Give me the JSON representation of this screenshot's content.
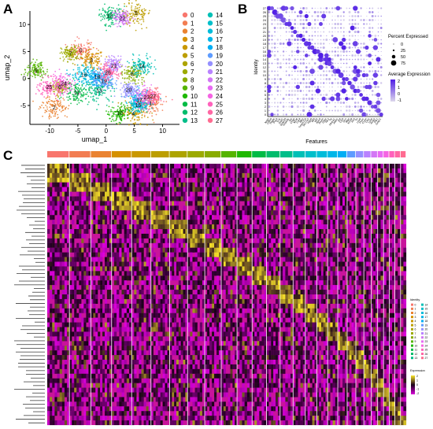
{
  "panels": {
    "a": {
      "letter": "A"
    },
    "b": {
      "letter": "B"
    },
    "c": {
      "letter": "C"
    }
  },
  "cluster_ids": [
    "0",
    "1",
    "2",
    "3",
    "4",
    "5",
    "6",
    "7",
    "8",
    "9",
    "10",
    "11",
    "12",
    "13",
    "14",
    "15",
    "16",
    "17",
    "18",
    "19",
    "20",
    "21",
    "22",
    "23",
    "24",
    "25",
    "26",
    "27"
  ],
  "colors": [
    "#f8766d",
    "#f27d52",
    "#ea8331",
    "#e18a00",
    "#d59100",
    "#c99800",
    "#bc9e00",
    "#ada400",
    "#9caa00",
    "#89ac00",
    "#72b000",
    "#55b400",
    "#1fb800",
    "#00bb45",
    "#00bc6c",
    "#00be89",
    "#00bfa1",
    "#00c0b6",
    "#00bfca",
    "#00bcda",
    "#00b6e8",
    "#00aef4",
    "#00a5ff",
    "#5e9cff",
    "#9590ff",
    "#b983ff",
    "#d377f5",
    "#e76bf3",
    "#f564e3",
    "#fd61d1",
    "#ff62bc",
    "#ff67a4",
    "#ff6c91"
  ],
  "chart_data": [
    {
      "type": "scatter",
      "panel": "A",
      "xlabel": "umap_1",
      "ylabel": "umap_2",
      "xticks": [
        -10,
        -5,
        0,
        5,
        10
      ],
      "yticks": [
        -5,
        0,
        5,
        10
      ],
      "xlim": [
        -13.5,
        13
      ],
      "ylim": [
        -8.5,
        12.5
      ],
      "legend_placement": "right",
      "cluster_centers": [
        {
          "id": "0",
          "x": -4.5,
          "y": 5.2
        },
        {
          "id": "1",
          "x": 7.9,
          "y": -4.6
        },
        {
          "id": "2",
          "x": -9.2,
          "y": -5.4
        },
        {
          "id": "3",
          "x": -2.6,
          "y": 3.4
        },
        {
          "id": "4",
          "x": 4.8,
          "y": -6.5
        },
        {
          "id": "5",
          "x": 5.3,
          "y": 12.1
        },
        {
          "id": "6",
          "x": -8.2,
          "y": -1.6
        },
        {
          "id": "7",
          "x": -6.3,
          "y": 4.6
        },
        {
          "id": "8",
          "x": 4.6,
          "y": 0.8
        },
        {
          "id": "9",
          "x": -12.4,
          "y": 1.5
        },
        {
          "id": "10",
          "x": 2.4,
          "y": -6.4
        },
        {
          "id": "11",
          "x": -5.2,
          "y": -2.6
        },
        {
          "id": "12",
          "x": 0.6,
          "y": 11.6
        },
        {
          "id": "13",
          "x": -1.2,
          "y": -2.2
        },
        {
          "id": "14",
          "x": 6.3,
          "y": 2.3
        },
        {
          "id": "15",
          "x": 5.7,
          "y": -4.9
        },
        {
          "id": "16",
          "x": -3.9,
          "y": 0.7
        },
        {
          "id": "17",
          "x": 5.9,
          "y": -4.0
        },
        {
          "id": "18",
          "x": -1.6,
          "y": 0.3
        },
        {
          "id": "19",
          "x": -0.4,
          "y": -0.5
        },
        {
          "id": "20",
          "x": 4.0,
          "y": -2.1
        },
        {
          "id": "21",
          "x": 1.4,
          "y": 2.4
        },
        {
          "id": "22",
          "x": 2.9,
          "y": 11.2
        },
        {
          "id": "23",
          "x": 7.2,
          "y": -3.5
        },
        {
          "id": "24",
          "x": -7.5,
          "y": -0.9
        },
        {
          "id": "25",
          "x": -10.1,
          "y": -1.6
        },
        {
          "id": "26",
          "x": 0.3,
          "y": 1.1
        },
        {
          "id": "27",
          "x": 8.3,
          "y": -3.3
        }
      ]
    },
    {
      "type": "scatter",
      "panel": "B",
      "xlabel": "Features",
      "ylabel": "Identity",
      "features": [
        "Nrgn",
        "Cldn5",
        "Ptgds",
        "Pcp4",
        "Cck",
        "Gad1",
        "Snap25",
        "Tmsb4x",
        "Vip",
        "Chgb",
        "Nnat",
        "Car4",
        "Mbp",
        "Tmem119",
        "Slc17a7",
        "Rgs5",
        "Mt3",
        "Igf2",
        "Apod",
        "Pmch",
        "Gfap",
        "Tac2",
        "Ttr",
        "Hba-a1",
        "Aldoc",
        "Sst",
        "Ccl4",
        "Dcn",
        "Mgp",
        "Kcnj8",
        "Hcrt",
        "Th",
        "Lhx6",
        "Pnoc",
        "Crym",
        "Ctss",
        "Ly6a",
        "Acta2",
        "Plp1",
        "Gng11"
      ],
      "percent_expressed_legend": {
        "title": "Percent Expressed",
        "values": [
          0,
          25,
          50,
          75
        ]
      },
      "average_expression_legend": {
        "title": "Average Expression",
        "ticks": [
          2,
          1,
          0,
          -1
        ]
      }
    },
    {
      "type": "heatmap",
      "panel": "C",
      "legend_identity_title": "Identity",
      "legend_expression_title": "Expression",
      "expression_ticks": [
        2,
        1,
        0,
        -1,
        -2
      ],
      "column_groups": [
        "0",
        "1",
        "2",
        "3",
        "4",
        "5",
        "6",
        "7",
        "8",
        "9",
        "10",
        "11",
        "12",
        "13",
        "14",
        "15",
        "16",
        "17",
        "18",
        "19",
        "20",
        "21",
        "22",
        "23",
        "24",
        "25",
        "26",
        "27"
      ]
    }
  ]
}
